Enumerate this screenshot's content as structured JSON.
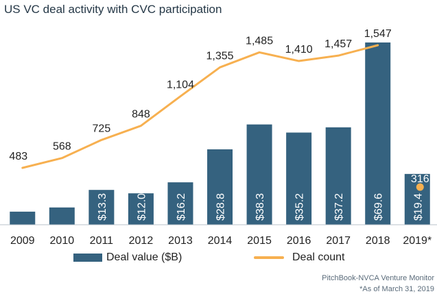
{
  "title": "US VC deal activity with CVC participation",
  "chart_data": {
    "type": "bar",
    "categories": [
      "2009",
      "2010",
      "2011",
      "2012",
      "2013",
      "2014",
      "2015",
      "2016",
      "2017",
      "2018",
      "2019*"
    ],
    "series": [
      {
        "name": "Deal value ($B)",
        "type": "bar",
        "color": "#35627f",
        "values": [
          5.0,
          6.6,
          13.3,
          12.0,
          16.2,
          28.8,
          38.3,
          35.2,
          37.2,
          69.6,
          19.4
        ],
        "labels": [
          "",
          "",
          "$13.3",
          "$12.0",
          "$16.2",
          "$28.8",
          "$38.3",
          "$35.2",
          "$37.2",
          "$69.6",
          "$19.4"
        ]
      },
      {
        "name": "Deal count",
        "type": "line",
        "color": "#f7b050",
        "values": [
          483,
          568,
          725,
          848,
          1104,
          1355,
          1485,
          1410,
          1457,
          1547,
          null
        ],
        "labels": [
          "483",
          "568",
          "725",
          "848",
          "1,104",
          "1,355",
          "1,485",
          "1,410",
          "1,457",
          "1,547",
          ""
        ]
      }
    ],
    "point_series": {
      "name": "Deal count",
      "category": "2019*",
      "value": 316,
      "label": "316",
      "color": "#f7b050"
    },
    "legend": {
      "position": "bottom"
    },
    "grid": false
  },
  "source": {
    "line1": "PitchBook-NVCA Venture Monitor",
    "line2": "*As of March 31, 2019"
  }
}
